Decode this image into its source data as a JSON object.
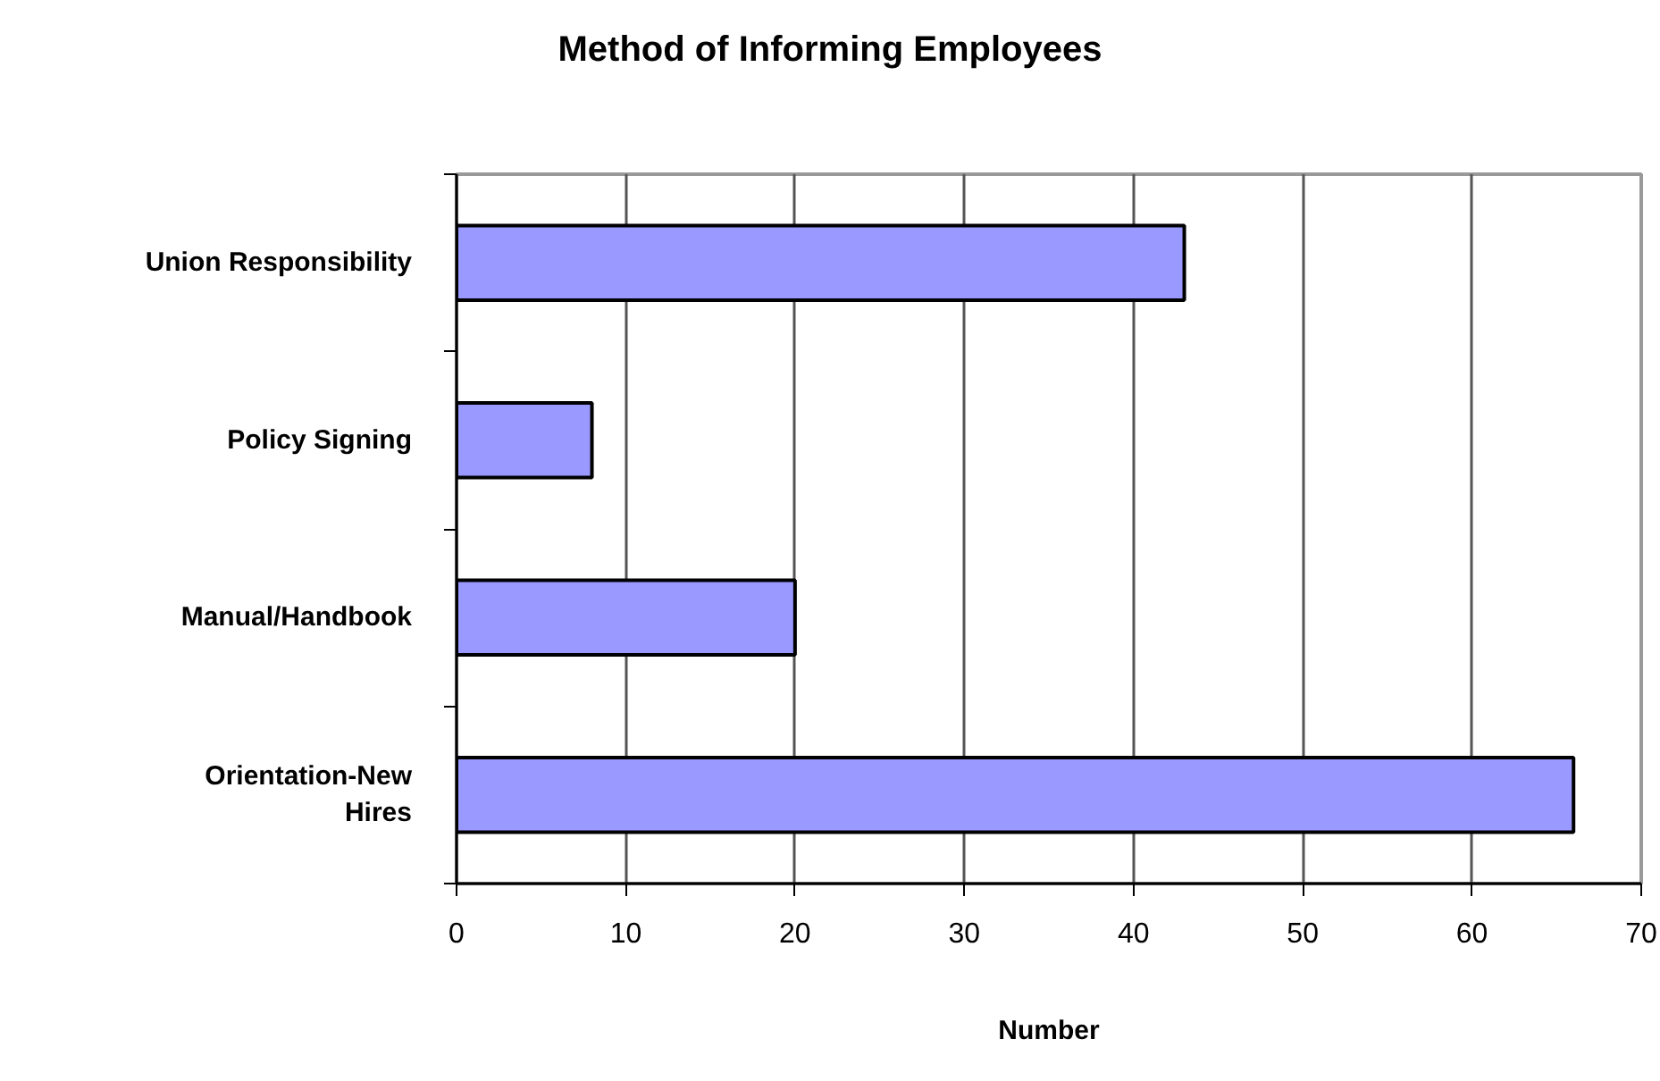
{
  "chart_data": {
    "type": "bar",
    "orientation": "horizontal",
    "title": "Method of Informing Employees",
    "xlabel": "Number",
    "categories": [
      "Union Responsibility",
      "Policy Signing",
      "Manual/Handbook",
      "Orientation-New Hires"
    ],
    "values": [
      43,
      8,
      20,
      66
    ],
    "color": "#9999ff",
    "xlim": [
      0,
      70
    ],
    "xticks": [
      0,
      10,
      20,
      30,
      40,
      50,
      60,
      70
    ],
    "grid": "x"
  }
}
